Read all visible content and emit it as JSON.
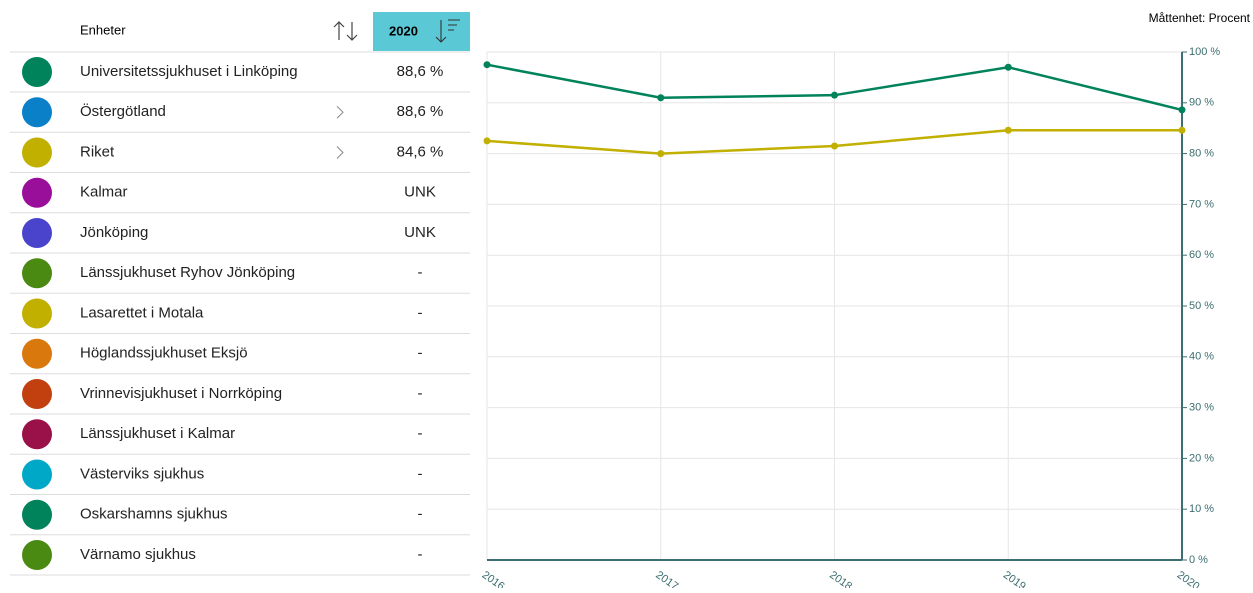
{
  "header": {
    "unit_label": "Måttenhet: Procent",
    "column_name": "Enheter",
    "column_year": "2020"
  },
  "table": {
    "rows": [
      {
        "name": "Universitetssjukhuset i Linköping",
        "value": "88,6 %",
        "color": "#00825a"
      },
      {
        "name": "Östergötland",
        "value": "88,6 %",
        "color": "#0a80c8"
      },
      {
        "name": "Riket",
        "value": "84,6 %",
        "color": "#c2b000"
      },
      {
        "name": "Kalmar",
        "value": "UNK",
        "color": "#990f99"
      },
      {
        "name": "Jönköping",
        "value": "UNK",
        "color": "#4a44cc"
      },
      {
        "name": "Länssjukhuset Ryhov Jönköping",
        "value": "-",
        "color": "#4a8a12"
      },
      {
        "name": "Lasarettet i Motala",
        "value": "-",
        "color": "#c2b000"
      },
      {
        "name": "Höglandssjukhuset Eksjö",
        "value": "-",
        "color": "#d9780c"
      },
      {
        "name": "Vrinnevisjukhuset i Norrköping",
        "value": "-",
        "color": "#c24010"
      },
      {
        "name": "Länssjukhuset i Kalmar",
        "value": "-",
        "color": "#9a1048"
      },
      {
        "name": "Västerviks sjukhus",
        "value": "-",
        "color": "#00a8c8"
      },
      {
        "name": "Oskarshamns sjukhus",
        "value": "-",
        "color": "#00825a"
      },
      {
        "name": "Värnamo sjukhus",
        "value": "-",
        "color": "#4a8a12"
      }
    ]
  },
  "chart_data": {
    "type": "line",
    "categories": [
      "2016",
      "2017",
      "2018",
      "2019",
      "2020"
    ],
    "series": [
      {
        "color": "#00825a",
        "values": [
          97.5,
          91,
          91.5,
          97,
          88.6
        ]
      },
      {
        "color": "#c2b000",
        "values": [
          82.5,
          80,
          81.5,
          84.6,
          84.6
        ]
      }
    ],
    "ylim": [
      0,
      100
    ],
    "yticks": [
      {
        "value": 0,
        "label": "0 %"
      },
      {
        "value": 10,
        "label": "10 %"
      },
      {
        "value": 20,
        "label": "20 %"
      },
      {
        "value": 30,
        "label": "30 %"
      },
      {
        "value": 40,
        "label": "40 %"
      },
      {
        "value": 50,
        "label": "50 %"
      },
      {
        "value": 60,
        "label": "60 %"
      },
      {
        "value": 70,
        "label": "70 %"
      },
      {
        "value": 80,
        "label": "80 %"
      },
      {
        "value": 90,
        "label": "90 %"
      },
      {
        "value": 100,
        "label": "100 %"
      }
    ],
    "grid": true
  }
}
